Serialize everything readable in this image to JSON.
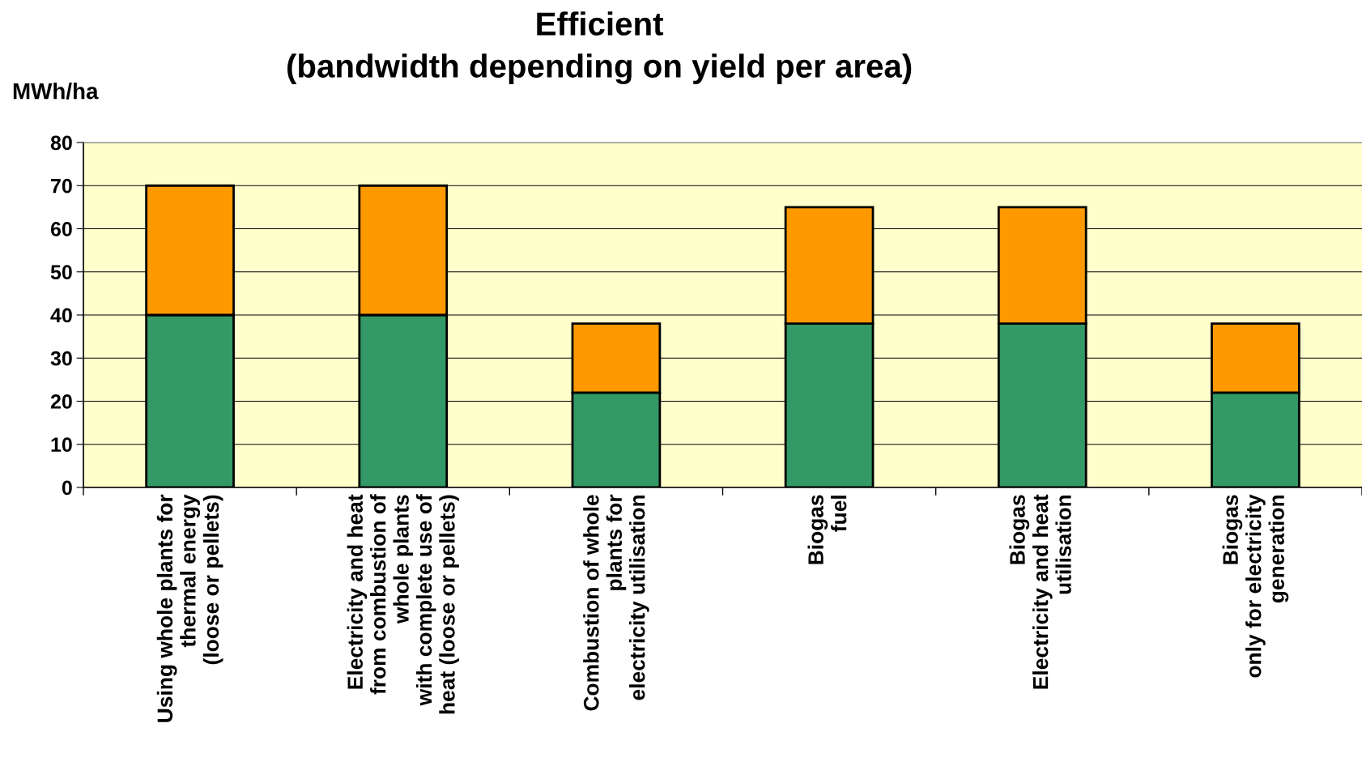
{
  "chart_data": {
    "type": "bar",
    "title": "Efficient\n(bandwidth depending on yield per area)",
    "ylabel": "MWh/ha",
    "categories": [
      "Using whole plants for\nthermal energy\n(loose or pellets)",
      "Electricity and heat\nfrom combustion of\nwhole plants\nwith complete use of\nheat (loose or pellets)",
      "Combustion of whole\nplants for\nelectricity utilisation",
      "Biogas\nfuel",
      "Biogas\nElectricity and heat\nutilisation",
      "Biogas\nonly for electricity\ngeneration"
    ],
    "stacked": true,
    "series": [
      {
        "color": "#339966",
        "values": [
          40,
          40,
          22,
          38,
          38,
          22
        ]
      },
      {
        "color": "#ff9900",
        "values": [
          30,
          30,
          16,
          27,
          27,
          16
        ]
      }
    ],
    "ylim": [
      0,
      80
    ],
    "yticks": [
      0,
      10,
      20,
      30,
      40,
      50,
      60,
      70,
      80
    ],
    "grid": "y"
  }
}
